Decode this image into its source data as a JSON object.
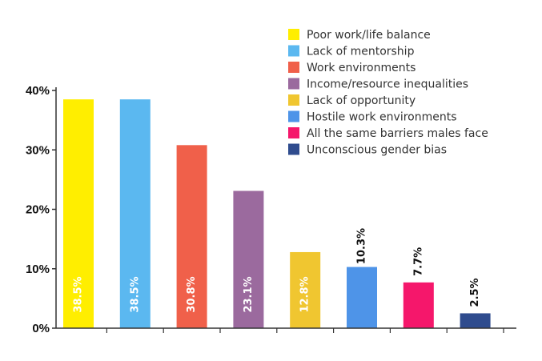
{
  "chart_data": {
    "type": "bar",
    "categories": [
      "Poor work/life balance",
      "Lack of mentorship",
      "Work environments",
      "Income/resource inequalities",
      "Lack of opportunity",
      "Hostile work environments",
      "All the same barriers males face",
      "Unconscious gender bias"
    ],
    "values": [
      38.5,
      38.5,
      30.8,
      23.1,
      12.8,
      10.3,
      7.7,
      2.5
    ],
    "data_labels": [
      "38.5%",
      "38.5%",
      "30.8%",
      "23.1%",
      "12.8%",
      "10.3%",
      "7.7%",
      "2.5%"
    ],
    "colors": [
      "#FFEE00",
      "#5BB8F0",
      "#F0604A",
      "#9B6A9E",
      "#F0C630",
      "#4E94E8",
      "#F5176B",
      "#2F4C8E"
    ],
    "ylim": [
      0,
      40
    ],
    "yticks": [
      0,
      10,
      20,
      30,
      40
    ],
    "ytick_labels": [
      "0%",
      "10%",
      "20%",
      "30%",
      "40%"
    ],
    "legend_position": "top-right",
    "grid": false
  }
}
